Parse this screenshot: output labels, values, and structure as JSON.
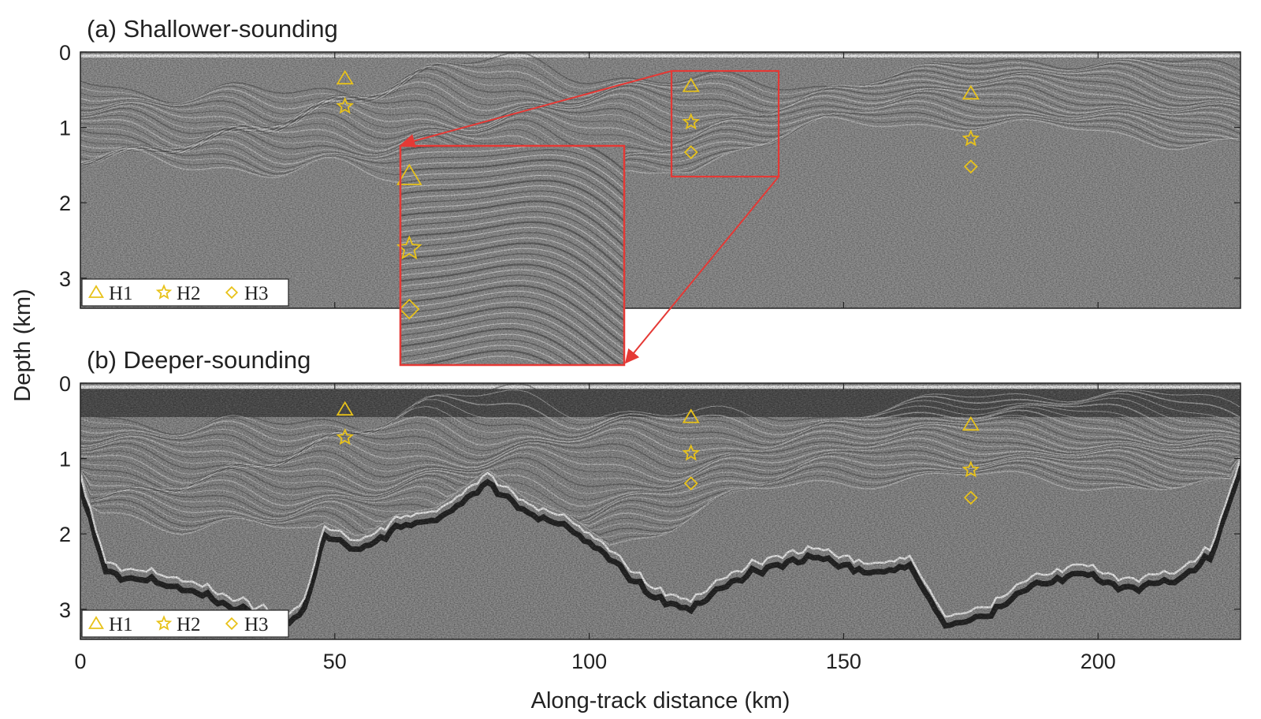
{
  "figure": {
    "ylabel": "Depth (km)",
    "xlabel": "Along-track distance (km)",
    "legend": [
      {
        "label": "H1",
        "marker": "triangle-icon"
      },
      {
        "label": "H2",
        "marker": "star-icon"
      },
      {
        "label": "H3",
        "marker": "diamond-icon"
      }
    ],
    "colors": {
      "marker": "#e8c21a",
      "zoom": "#e53935",
      "frame": "#222222"
    }
  },
  "chart_data": [
    {
      "type": "scatter",
      "panel": "a",
      "title": "(a) Shallower-sounding",
      "xlim": [
        0,
        228
      ],
      "ylim": [
        3.4,
        0
      ],
      "xticks": [
        0,
        50,
        100,
        150,
        200
      ],
      "yticks": [
        0,
        1,
        2,
        3
      ],
      "background": "radargram",
      "series": [
        {
          "name": "H1",
          "marker": "triangle",
          "x": [
            52,
            120,
            175
          ],
          "y": [
            0.35,
            0.45,
            0.55
          ]
        },
        {
          "name": "H2",
          "marker": "star",
          "x": [
            52,
            120,
            175
          ],
          "y": [
            0.72,
            0.93,
            1.15
          ]
        },
        {
          "name": "H3",
          "marker": "diamond",
          "x": [
            120,
            175
          ],
          "y": [
            1.33,
            1.52
          ]
        }
      ],
      "inset": {
        "x_range": [
          116.5,
          137.5
        ],
        "y_range": [
          0.25,
          1.7
        ]
      }
    },
    {
      "type": "scatter",
      "panel": "b",
      "title": "(b) Deeper-sounding",
      "xlim": [
        0,
        228
      ],
      "ylim": [
        3.4,
        0
      ],
      "xticks": [
        0,
        50,
        100,
        150,
        200
      ],
      "yticks": [
        0,
        1,
        2,
        3
      ],
      "background": "radargram",
      "series": [
        {
          "name": "H1",
          "marker": "triangle",
          "x": [
            52,
            120,
            175
          ],
          "y": [
            0.35,
            0.45,
            0.55
          ]
        },
        {
          "name": "H2",
          "marker": "star",
          "x": [
            52,
            120,
            175
          ],
          "y": [
            0.72,
            0.93,
            1.15
          ]
        },
        {
          "name": "H3",
          "marker": "diamond",
          "x": [
            120,
            175
          ],
          "y": [
            1.33,
            1.52
          ]
        }
      ]
    }
  ]
}
